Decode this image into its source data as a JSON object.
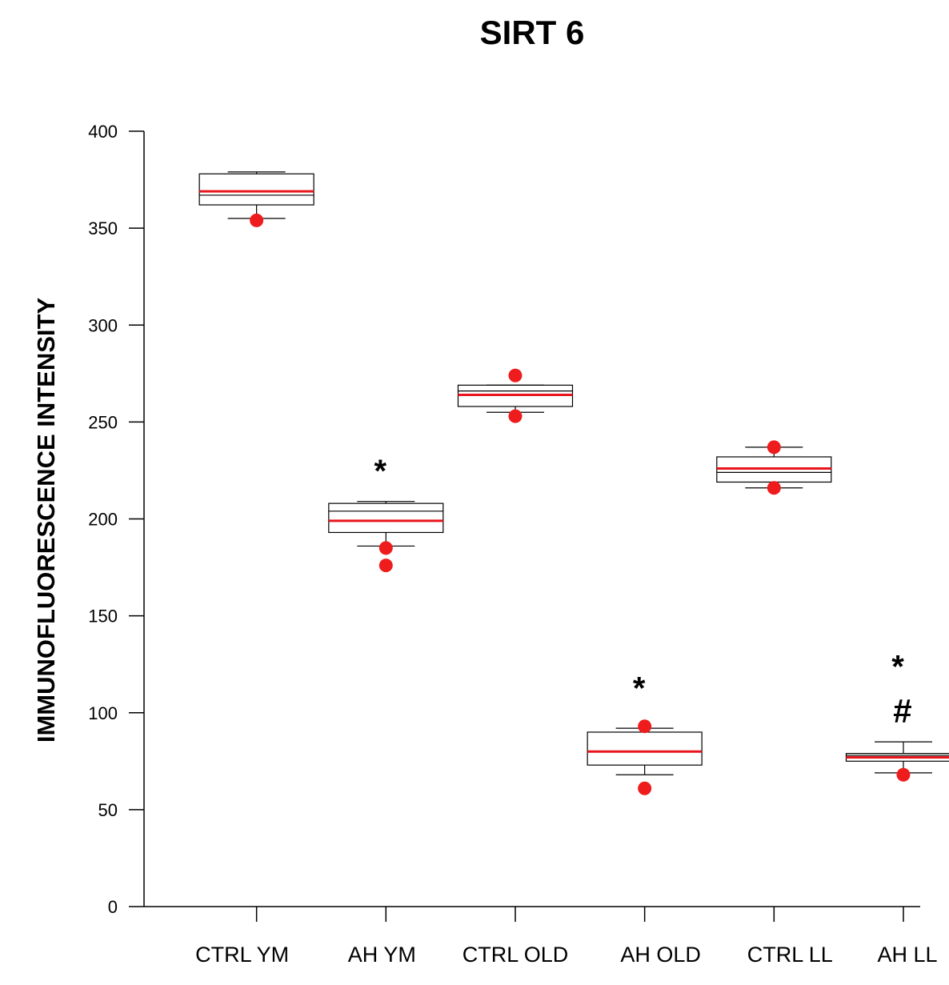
{
  "chart_data": {
    "type": "boxplot",
    "title": "SIRT 6",
    "xlabel": "",
    "ylabel": "IMMUNOFLUORESCENCE INTENSITY",
    "ylim": [
      0,
      400
    ],
    "yticks": [
      0,
      50,
      100,
      150,
      200,
      250,
      300,
      350,
      400
    ],
    "categories": [
      "CTRL YM",
      "AH YM",
      "CTRL OLD",
      "AH OLD",
      "CTRL LL",
      "AH LL"
    ],
    "boxes": [
      {
        "category": "CTRL YM",
        "whisker_low": 355,
        "q1": 362,
        "median": 367,
        "q3": 378,
        "whisker_high": 379,
        "mean": 369,
        "outliers": [
          354
        ]
      },
      {
        "category": "AH YM",
        "whisker_low": 186,
        "q1": 193,
        "median": 204,
        "q3": 208,
        "whisker_high": 209,
        "mean": 199,
        "outliers": [
          185,
          176
        ]
      },
      {
        "category": "CTRL OLD",
        "whisker_low": 255,
        "q1": 258,
        "median": 266,
        "q3": 269,
        "whisker_high": 269,
        "mean": 264,
        "outliers": [
          274,
          253
        ]
      },
      {
        "category": "AH OLD",
        "whisker_low": 68,
        "q1": 73,
        "median": 80,
        "q3": 90,
        "whisker_high": 92,
        "mean": 80,
        "outliers": [
          93,
          61
        ]
      },
      {
        "category": "CTRL LL",
        "whisker_low": 216,
        "q1": 219,
        "median": 224,
        "q3": 232,
        "whisker_high": 237,
        "mean": 226,
        "outliers": [
          237,
          216
        ]
      },
      {
        "category": "AH LL",
        "whisker_low": 69,
        "q1": 75,
        "median": 78,
        "q3": 79,
        "whisker_high": 85,
        "mean": 77,
        "outliers": [
          68
        ]
      }
    ],
    "annotations": [
      {
        "category": "AH YM",
        "text": "*"
      },
      {
        "category": "AH OLD",
        "text": "*"
      },
      {
        "category": "AH LL",
        "text": "*"
      },
      {
        "category": "AH LL",
        "text": "#"
      }
    ],
    "colors": {
      "box": "#000000",
      "mean_line": "#e8141b",
      "outlier": "#ee1c1c"
    }
  }
}
